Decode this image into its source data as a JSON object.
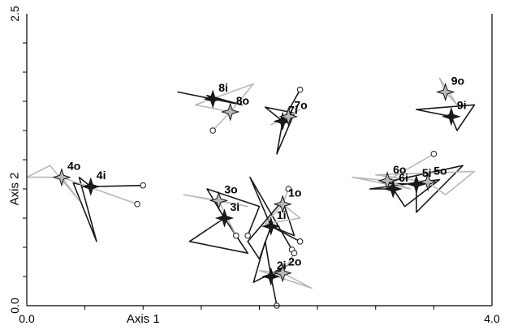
{
  "chart_data": {
    "type": "scatter",
    "xlabel": "Axis 1",
    "ylabel": "Axis 2",
    "xlim": [
      0.0,
      4.0
    ],
    "ylim": [
      0.0,
      2.5
    ],
    "xticks": [
      {
        "v": 0.0,
        "label": "0.0"
      },
      {
        "v": 1.0,
        "label": "Axis 1"
      },
      {
        "v": 4.0,
        "label": "4.0"
      }
    ],
    "yticks": [
      {
        "v": 0.0,
        "label": "0.0"
      },
      {
        "v": 1.0,
        "label": "Axis 2"
      },
      {
        "v": 2.5,
        "label": "2.5"
      }
    ],
    "minor_x": [
      0.5,
      1.0,
      1.5,
      2.0,
      2.5,
      3.0,
      3.5
    ],
    "minor_y": [
      0.25,
      0.5,
      0.75,
      1.0,
      1.25,
      1.5,
      1.75,
      2.0,
      2.25
    ],
    "colors": {
      "i": "#1a1a1a",
      "o": "#b8b8b8"
    },
    "series": [
      {
        "name": "i",
        "points": [
          {
            "label": "1i",
            "x": 2.1,
            "y": 0.68
          },
          {
            "label": "2i",
            "x": 2.1,
            "y": 0.25
          },
          {
            "label": "3i",
            "x": 1.7,
            "y": 0.75
          },
          {
            "label": "4i",
            "x": 0.55,
            "y": 1.02
          },
          {
            "label": "5i",
            "x": 3.35,
            "y": 1.04
          },
          {
            "label": "6i",
            "x": 3.15,
            "y": 1.0
          },
          {
            "label": "7i",
            "x": 2.2,
            "y": 1.58
          },
          {
            "label": "8i",
            "x": 1.6,
            "y": 1.77
          },
          {
            "label": "9i",
            "x": 3.65,
            "y": 1.62
          }
        ]
      },
      {
        "name": "o",
        "points": [
          {
            "label": "1o",
            "x": 2.2,
            "y": 0.87
          },
          {
            "label": "2o",
            "x": 2.2,
            "y": 0.28
          },
          {
            "label": "3o",
            "x": 1.65,
            "y": 0.9
          },
          {
            "label": "4o",
            "x": 0.3,
            "y": 1.1
          },
          {
            "label": "5o",
            "x": 3.45,
            "y": 1.06
          },
          {
            "label": "6o",
            "x": 3.1,
            "y": 1.07
          },
          {
            "label": "7o",
            "x": 2.25,
            "y": 1.62
          },
          {
            "label": "8o",
            "x": 1.75,
            "y": 1.66
          },
          {
            "label": "9o",
            "x": 3.6,
            "y": 1.83
          }
        ]
      }
    ],
    "traces": [
      {
        "group": "1i",
        "series": "i",
        "path": [
          [
            2.1,
            0.68
          ],
          [
            2.0,
            0.4
          ],
          [
            1.9,
            0.55
          ],
          [
            2.2,
            0.9
          ],
          [
            2.3,
            0.6
          ],
          [
            2.1,
            0.68
          ],
          [
            2.35,
            0.55
          ]
        ]
      },
      {
        "group": "1i",
        "series": "i",
        "path": [
          [
            2.1,
            0.68
          ],
          [
            1.92,
            1.1
          ],
          [
            2.28,
            0.48
          ]
        ]
      },
      {
        "group": "2i",
        "series": "i",
        "path": [
          [
            2.1,
            0.25
          ],
          [
            2.05,
            0.55
          ],
          [
            1.95,
            0.2
          ],
          [
            2.25,
            0.35
          ],
          [
            2.1,
            0.25
          ],
          [
            2.15,
            0.0
          ]
        ]
      },
      {
        "group": "3i",
        "series": "i",
        "path": [
          [
            1.7,
            0.75
          ],
          [
            1.4,
            0.55
          ],
          [
            1.9,
            0.45
          ],
          [
            1.7,
            0.75
          ],
          [
            1.55,
            1.0
          ],
          [
            2.0,
            0.85
          ],
          [
            1.9,
            0.6
          ]
        ]
      },
      {
        "group": "4i",
        "series": "i",
        "path": [
          [
            0.55,
            1.02
          ],
          [
            0.4,
            1.05
          ],
          [
            0.6,
            0.55
          ],
          [
            0.45,
            1.1
          ],
          [
            0.55,
            1.02
          ],
          [
            1.0,
            1.03
          ]
        ]
      },
      {
        "group": "5i",
        "series": "i",
        "path": [
          [
            3.35,
            1.04
          ],
          [
            3.05,
            1.05
          ],
          [
            3.75,
            1.2
          ],
          [
            3.35,
            0.8
          ],
          [
            3.35,
            1.04
          ]
        ]
      },
      {
        "group": "6i",
        "series": "i",
        "path": [
          [
            3.15,
            1.0
          ],
          [
            2.95,
            1.0
          ],
          [
            3.55,
            1.08
          ],
          [
            3.25,
            0.85
          ],
          [
            3.15,
            1.0
          ]
        ]
      },
      {
        "group": "7i",
        "series": "i",
        "path": [
          [
            2.2,
            1.58
          ],
          [
            2.05,
            1.7
          ],
          [
            2.3,
            1.65
          ],
          [
            2.15,
            1.3
          ],
          [
            2.2,
            1.58
          ],
          [
            2.35,
            1.85
          ]
        ]
      },
      {
        "group": "8i",
        "series": "i",
        "path": [
          [
            1.6,
            1.77
          ],
          [
            1.3,
            1.83
          ],
          [
            1.85,
            1.72
          ],
          [
            1.55,
            1.8
          ],
          [
            1.6,
            1.77
          ]
        ]
      },
      {
        "group": "9i",
        "series": "i",
        "path": [
          [
            3.65,
            1.62
          ],
          [
            3.35,
            1.68
          ],
          [
            3.85,
            1.72
          ],
          [
            3.7,
            1.5
          ],
          [
            3.65,
            1.62
          ]
        ]
      },
      {
        "group": "1o",
        "series": "o",
        "path": [
          [
            2.2,
            0.87
          ],
          [
            2.05,
            0.7
          ],
          [
            2.35,
            0.75
          ],
          [
            2.2,
            0.87
          ],
          [
            2.25,
            1.0
          ]
        ]
      },
      {
        "group": "2o",
        "series": "o",
        "path": [
          [
            2.2,
            0.28
          ],
          [
            2.0,
            0.3
          ],
          [
            2.45,
            0.15
          ],
          [
            2.2,
            0.28
          ],
          [
            2.3,
            0.45
          ]
        ]
      },
      {
        "group": "3o",
        "series": "o",
        "path": [
          [
            1.65,
            0.9
          ],
          [
            1.35,
            0.95
          ],
          [
            1.9,
            0.85
          ],
          [
            1.65,
            0.9
          ],
          [
            1.8,
            0.6
          ]
        ]
      },
      {
        "group": "4o",
        "series": "o",
        "path": [
          [
            0.3,
            1.1
          ],
          [
            0.0,
            1.1
          ],
          [
            0.2,
            1.2
          ],
          [
            0.45,
            0.9
          ],
          [
            0.3,
            1.1
          ],
          [
            0.95,
            0.87
          ]
        ]
      },
      {
        "group": "5o",
        "series": "o",
        "path": [
          [
            3.45,
            1.06
          ],
          [
            3.0,
            1.12
          ],
          [
            3.85,
            1.15
          ],
          [
            3.6,
            0.95
          ],
          [
            3.45,
            1.06
          ]
        ]
      },
      {
        "group": "6o",
        "series": "o",
        "path": [
          [
            3.1,
            1.07
          ],
          [
            2.8,
            1.1
          ],
          [
            3.3,
            1.0
          ],
          [
            3.1,
            1.07
          ],
          [
            3.5,
            1.3
          ]
        ]
      },
      {
        "group": "7o",
        "series": "o",
        "path": [
          [
            2.25,
            1.62
          ],
          [
            2.1,
            1.55
          ],
          [
            2.35,
            1.68
          ],
          [
            2.25,
            1.62
          ]
        ]
      },
      {
        "group": "8o",
        "series": "o",
        "path": [
          [
            1.75,
            1.66
          ],
          [
            1.45,
            1.72
          ],
          [
            1.95,
            1.9
          ],
          [
            1.75,
            1.66
          ],
          [
            1.6,
            1.5
          ]
        ]
      },
      {
        "group": "9o",
        "series": "o",
        "path": [
          [
            3.6,
            1.83
          ],
          [
            3.55,
            1.95
          ],
          [
            3.7,
            1.72
          ],
          [
            3.6,
            1.83
          ]
        ]
      }
    ]
  }
}
